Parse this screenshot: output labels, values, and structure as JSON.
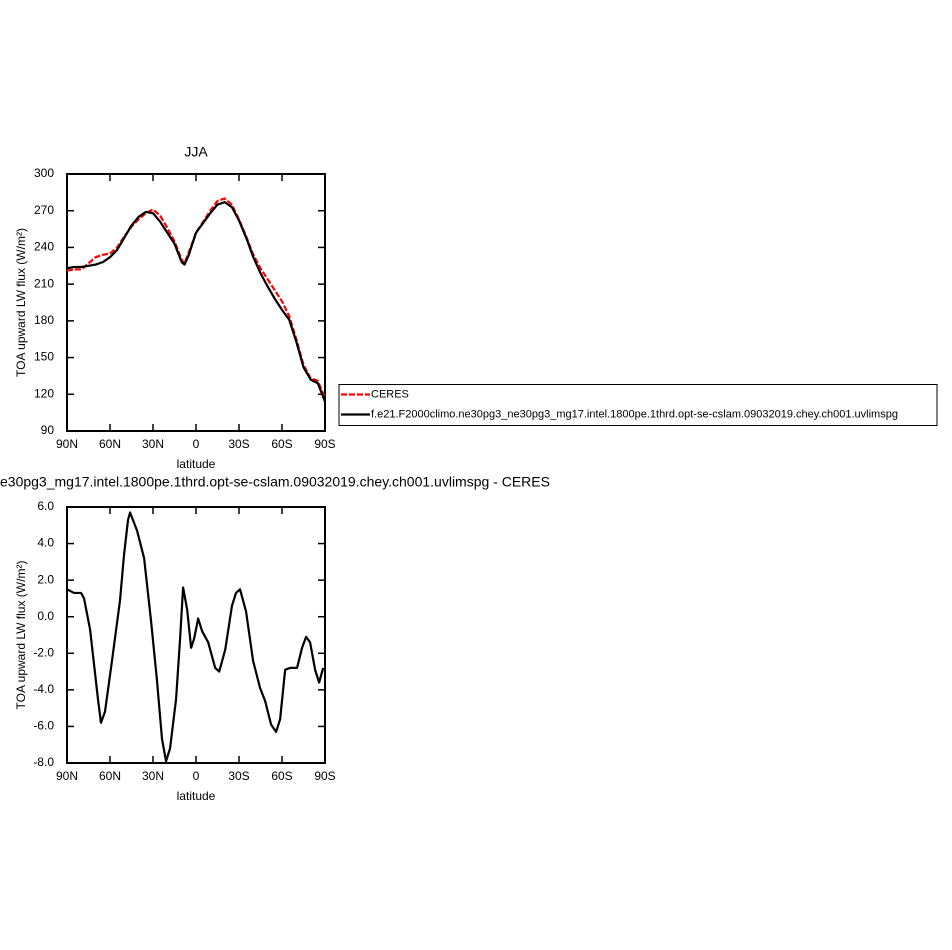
{
  "chart_data": [
    {
      "type": "line",
      "title": "JJA",
      "xlabel": "latitude",
      "ylabel": "TOA upward LW flux (W/m²)",
      "x": [
        90,
        85,
        80,
        75,
        70,
        65,
        60,
        55,
        50,
        45,
        40,
        35,
        30,
        25,
        20,
        15,
        10,
        8,
        5,
        0,
        -5,
        -10,
        -15,
        -20,
        -25,
        -30,
        -35,
        -40,
        -45,
        -50,
        -55,
        -60,
        -65,
        -70,
        -75,
        -80,
        -85,
        -90
      ],
      "xlim": [
        90,
        -90
      ],
      "xticks": [
        {
          "value": 90,
          "label": "90N"
        },
        {
          "value": 60,
          "label": "60N"
        },
        {
          "value": 30,
          "label": "30N"
        },
        0,
        {
          "value": -30,
          "label": "30S"
        },
        {
          "value": -60,
          "label": "60S"
        },
        {
          "value": -90,
          "label": "90S"
        }
      ],
      "ylim": [
        90,
        300
      ],
      "yticks": [
        90,
        120,
        150,
        180,
        210,
        240,
        270,
        300
      ],
      "legend": "right",
      "series": [
        {
          "name": "CERES",
          "color": "#ff0000",
          "dashed": true,
          "values": [
            221,
            222,
            222,
            227,
            232,
            234,
            235,
            240,
            249,
            257,
            263,
            268,
            271,
            266,
            256,
            245,
            230,
            227,
            236,
            252,
            261,
            270,
            278,
            280,
            275,
            263,
            249,
            234,
            223,
            214,
            205,
            196,
            184,
            165,
            144,
            133,
            131,
            117
          ]
        },
        {
          "name": "f.e21.F2000climo.ne30pg3_ne30pg3_mg17.intel.1800pe.1thrd.opt-se-cslam.09032019.chey.ch001.uvlimspg",
          "color": "#000000",
          "dashed": false,
          "values": [
            223,
            224,
            224,
            225,
            226,
            228,
            232,
            238,
            248,
            258,
            265,
            269,
            268,
            261,
            252,
            243,
            228,
            226,
            234,
            252,
            260,
            268,
            275,
            277,
            273,
            262,
            248,
            232,
            219,
            208,
            198,
            189,
            181,
            163,
            142,
            132,
            129,
            114
          ]
        }
      ]
    },
    {
      "type": "line",
      "title": "e30pg3_mg17.intel.1800pe.1thrd.opt-se-cslam.09032019.chey.ch001.uvlimspg - CERES",
      "xlabel": "latitude",
      "ylabel": "TOA upward LW flux (W/m²)",
      "x": [
        90,
        85.1,
        80.2,
        78.1,
        73.9,
        68.4,
        66.3,
        63.5,
        58.6,
        53,
        50.2,
        47.4,
        46,
        41.1,
        36.2,
        31.4,
        27.2,
        23.7,
        20.9,
        18.1,
        13.9,
        11.1,
        9,
        6.2,
        3.4,
        1.3,
        -1.5,
        -4.3,
        -8.5,
        -13.4,
        -16.2,
        -20.4,
        -25.1,
        -27.9,
        -30.7,
        -34.9,
        -39.8,
        -44.7,
        -48.2,
        -52.4,
        -55.9,
        -58.7,
        -62.2,
        -65.6,
        -70.5,
        -74,
        -76.8,
        -79.6,
        -83.1,
        -85.9,
        -88.7
      ],
      "xlim": [
        90,
        -90
      ],
      "xticks": [
        {
          "value": 90,
          "label": "90N"
        },
        {
          "value": 60,
          "label": "60N"
        },
        {
          "value": 30,
          "label": "30N"
        },
        0,
        {
          "value": -30,
          "label": "30S"
        },
        {
          "value": -60,
          "label": "60S"
        },
        {
          "value": -90,
          "label": "90S"
        }
      ],
      "ylim": [
        -8,
        6
      ],
      "yticks": [
        {
          "value": -8,
          "label": "-8.0"
        },
        {
          "value": -6,
          "label": "-6.0"
        },
        {
          "value": -4,
          "label": "-4.0"
        },
        {
          "value": -2,
          "label": "-2.0"
        },
        {
          "value": 0,
          "label": "0.0"
        },
        {
          "value": 2,
          "label": "2.0"
        },
        {
          "value": 4,
          "label": "4.0"
        },
        {
          "value": 6,
          "label": "6.0"
        }
      ],
      "series": [
        {
          "color": "#000000",
          "dashed": false,
          "values": [
            1.5,
            1.3,
            1.3,
            1.0,
            -0.7,
            -4.5,
            -5.8,
            -5.2,
            -2.4,
            0.9,
            3.4,
            5.3,
            5.7,
            4.7,
            3.2,
            -0.2,
            -3.5,
            -6.7,
            -7.9,
            -7.2,
            -4.5,
            -1.2,
            1.6,
            0.4,
            -1.7,
            -1.2,
            -0.1,
            -0.8,
            -1.4,
            -2.8,
            -3.0,
            -1.8,
            0.6,
            1.3,
            1.5,
            0.3,
            -2.4,
            -3.9,
            -4.6,
            -5.9,
            -6.3,
            -5.6,
            -2.9,
            -2.8,
            -2.8,
            -1.7,
            -1.1,
            -1.4,
            -2.9,
            -3.6,
            -2.8
          ]
        }
      ]
    }
  ]
}
